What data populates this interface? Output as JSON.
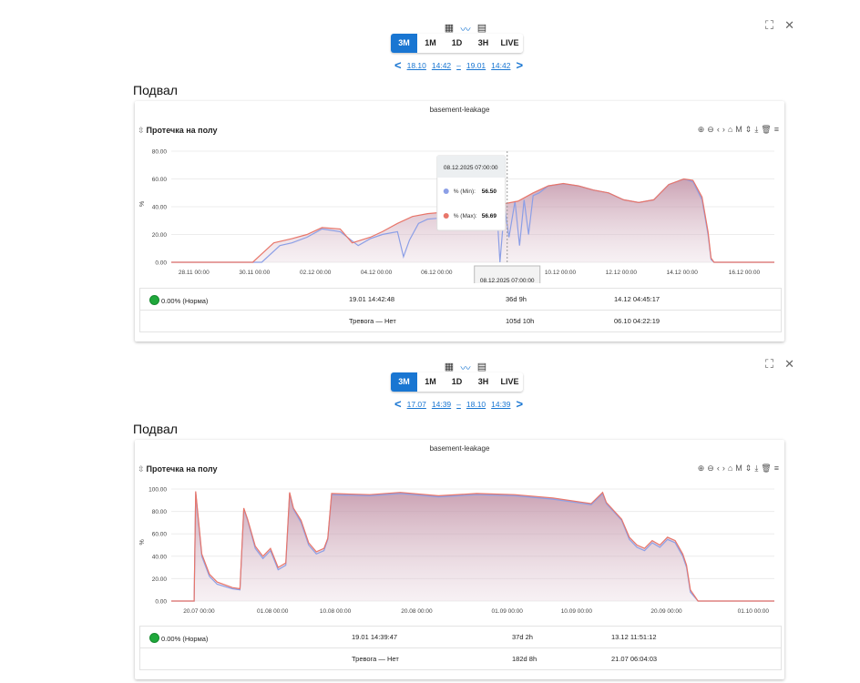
{
  "panels": [
    {
      "view_icons": [
        "grid-icon",
        "line-chart-icon",
        "table-icon"
      ],
      "periods": [
        "3M",
        "1M",
        "1D",
        "3H",
        "LIVE"
      ],
      "active_period": "3M",
      "range": {
        "from_date": "18.10",
        "from_time": "14:42",
        "sep": "–",
        "to_date": "19.01",
        "to_time": "14:42"
      },
      "room": "Подвал",
      "device": "basement-leakage",
      "chart_title": "Протечка на полу",
      "chart_data": {
        "type": "area",
        "ylabel": "%",
        "ylim": [
          0,
          80
        ],
        "yticks": [
          "80.00",
          "60.00",
          "40.00",
          "20.00",
          "0.00"
        ],
        "xticks": [
          "28.11 00:00",
          "30.11 00:00",
          "02.12 00:00",
          "04.12 00:00",
          "06.12 00:00",
          "08.12.2025 07:00:00",
          "10.12 00:00",
          "12.12 00:00",
          "14.12 00:00",
          "16.12 00:00"
        ],
        "xlim_days": [
          0,
          20
        ],
        "series": [
          {
            "name": "% (Min)",
            "color": "#8c9fe6",
            "x": [
              0,
              3.0,
              3.6,
              4.0,
              4.5,
              5.0,
              5.6,
              6.2,
              6.6,
              7.0,
              7.5,
              7.7,
              7.9,
              8.2,
              8.5,
              9.0,
              9.5,
              10.0,
              10.5,
              10.8,
              10.9,
              11.05,
              11.2,
              11.4,
              11.55,
              11.7,
              11.85,
              12.0,
              12.2,
              12.5,
              13.0,
              13.5,
              14.0,
              14.5,
              15.0,
              15.5,
              16.0,
              16.5,
              17.0,
              17.3,
              17.6,
              17.8,
              17.9,
              18.0,
              20
            ],
            "y": [
              0,
              0,
              12,
              14,
              18,
              24,
              22,
              12,
              17,
              20,
              22,
              4,
              16,
              28,
              31,
              32,
              32,
              33,
              35,
              37,
              0,
              40,
              18,
              44,
              12,
              45,
              20,
              48,
              50,
              55,
              56.5,
              55,
              52,
              50,
              45,
              43,
              45,
              56,
              60,
              58,
              45,
              20,
              2,
              0,
              0
            ]
          },
          {
            "name": "% (Max)",
            "color": "#e8766a",
            "x": [
              0,
              2.7,
              3.0,
              3.4,
              4.0,
              4.5,
              5.0,
              5.6,
              6.0,
              6.6,
              7.0,
              7.5,
              8.0,
              8.5,
              9.0,
              9.5,
              10.0,
              10.5,
              11.0,
              11.5,
              12.0,
              12.5,
              13.0,
              13.5,
              14.0,
              14.5,
              15.0,
              15.5,
              16.0,
              16.5,
              17.0,
              17.3,
              17.6,
              17.8,
              17.9,
              18.0,
              20
            ],
            "y": [
              0,
              0,
              6,
              14,
              17,
              20,
              25,
              24,
              14,
              18,
              22,
              28,
              33,
              35,
              36,
              37,
              36,
              38,
              42,
              44,
              50,
              55,
              56.7,
              55,
              52,
              50,
              45,
              43,
              45,
              56,
              60,
              59,
              47,
              22,
              3,
              0,
              0
            ]
          }
        ],
        "tooltip": {
          "title": "08.12.2025 07:00:00",
          "rows": [
            {
              "label": "% (Min):",
              "value": "56.50",
              "color": "#8c9fe6"
            },
            {
              "label": "% (Max):",
              "value": "56.69",
              "color": "#e8766a"
            }
          ]
        }
      },
      "stats": [
        {
          "status": "0.00% (Норма)",
          "timestamp": "19.01 14:42:48",
          "duration": "36d 9h",
          "since": "14.12 04:45:17"
        },
        {
          "status": "",
          "timestamp": "Тревога — Нет",
          "duration": "105d 10h",
          "since": "06.10 04:22:19"
        }
      ]
    },
    {
      "view_icons": [
        "grid-icon",
        "line-chart-icon",
        "table-icon"
      ],
      "periods": [
        "3M",
        "1M",
        "1D",
        "3H",
        "LIVE"
      ],
      "active_period": "3M",
      "range": {
        "from_date": "17.07",
        "from_time": "14:39",
        "sep": "–",
        "to_date": "18.10",
        "to_time": "14:39"
      },
      "room": "Подвал",
      "device": "basement-leakage",
      "chart_title": "Протечка на полу",
      "chart_data": {
        "type": "area",
        "ylabel": "%",
        "ylim": [
          0,
          100
        ],
        "yticks": [
          "100.00",
          "80.00",
          "60.00",
          "40.00",
          "20.00",
          "0.00"
        ],
        "xticks": [
          "20.07 00:00",
          "01.08 00:00",
          "10.08 00:00",
          "20.08 00:00",
          "01.09 00:00",
          "10.09 00:00",
          "20.09 00:00",
          "01.10 00:00"
        ],
        "xlim_days": [
          0,
          79
        ],
        "series": [
          {
            "name": "% (Min)",
            "color": "#8c9fe6",
            "x": [
              0,
              3.0,
              3.2,
              4.0,
              5.0,
              6.0,
              8.0,
              9.0,
              9.5,
              10.0,
              11.0,
              12.0,
              13.0,
              14.0,
              15.0,
              15.5,
              16.0,
              17.0,
              18.0,
              19.0,
              20.0,
              20.5,
              21.0,
              26.0,
              30.0,
              35.0,
              40.0,
              45.0,
              50.0,
              55.0,
              56.5,
              57.0,
              59.0,
              60.0,
              61.0,
              62.0,
              63.0,
              64.0,
              65.0,
              66.0,
              67.0,
              67.5,
              68.0,
              69.0,
              70.0,
              73.0,
              79
            ],
            "y": [
              0,
              0,
              97,
              40,
              22,
              15,
              11,
              10,
              82,
              72,
              47,
              38,
              45,
              28,
              32,
              96,
              82,
              70,
              50,
              42,
              45,
              55,
              95,
              94,
              96,
              93,
              95,
              94,
              91,
              86,
              96,
              87,
              72,
              55,
              48,
              45,
              52,
              48,
              55,
              52,
              40,
              30,
              8,
              0,
              0,
              0,
              0
            ]
          },
          {
            "name": "% (Max)",
            "color": "#e8766a",
            "x": [
              0,
              3.0,
              3.2,
              4.0,
              5.0,
              6.0,
              8.0,
              9.0,
              9.5,
              10.0,
              11.0,
              12.0,
              13.0,
              14.0,
              15.0,
              15.5,
              16.0,
              17.0,
              18.0,
              19.0,
              20.0,
              20.5,
              21.0,
              26.0,
              30.0,
              35.0,
              40.0,
              45.0,
              50.0,
              55.0,
              56.5,
              57.0,
              59.0,
              60.0,
              61.0,
              62.0,
              63.0,
              64.0,
              65.0,
              66.0,
              67.0,
              67.5,
              68.0,
              69.0,
              70.0,
              73.0,
              79
            ],
            "y": [
              0,
              0,
              98,
              42,
              24,
              17,
              12,
              11,
              83,
              73,
              49,
              40,
              47,
              30,
              34,
              97,
              83,
              72,
              52,
              44,
              47,
              56,
              96,
              95,
              97,
              94,
              96,
              95,
              92,
              87,
              97,
              88,
              73,
              57,
              50,
              47,
              54,
              50,
              57,
              54,
              42,
              32,
              10,
              0,
              0,
              0,
              0
            ]
          }
        ],
        "tooltip": null
      },
      "stats": [
        {
          "status": "0.00% (Норма)",
          "timestamp": "19.01 14:39:47",
          "duration": "37d 2h",
          "since": "13.12 11:51:12"
        },
        {
          "status": "",
          "timestamp": "Тревога — Нет",
          "duration": "182d 8h",
          "since": "21.07 06:04:03"
        }
      ]
    }
  ]
}
